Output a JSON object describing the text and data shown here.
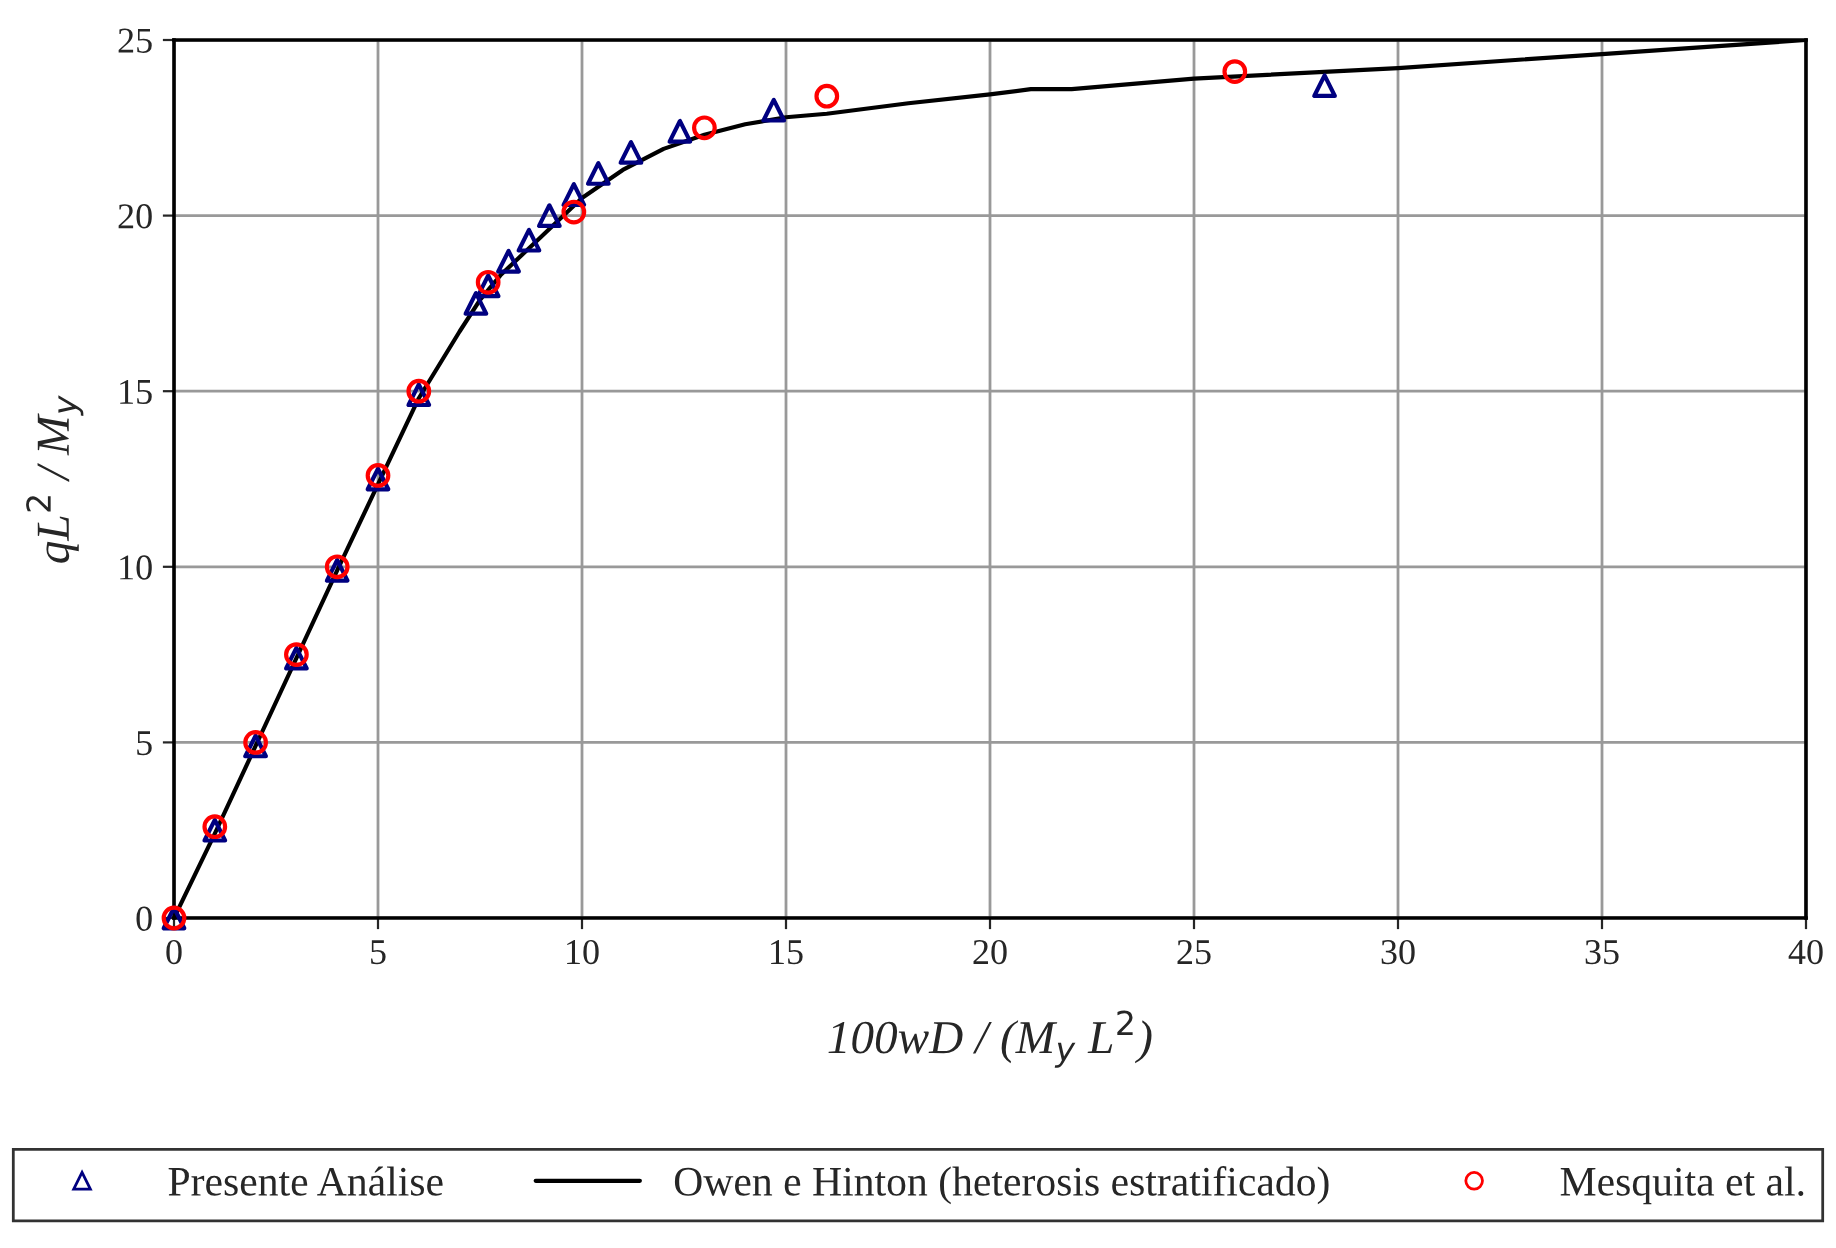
{
  "chart_data": {
    "type": "scatter",
    "xlabel": "100wD / (M$_{y}$ L$^{2}$)",
    "ylabel": "qL$^{2}$ / M$_{y}$",
    "xlim": [
      0,
      40
    ],
    "xticks": [
      0,
      5,
      10,
      15,
      20,
      25,
      30,
      35,
      40
    ],
    "ylim": [
      0,
      25
    ],
    "yticks": [
      0,
      5,
      10,
      15,
      20,
      25
    ],
    "grid": true,
    "legend": "bottom",
    "series": [
      {
        "name": "Presente Análise",
        "marker": "triangle",
        "color": "#000080",
        "x": [
          0,
          1,
          2,
          3,
          4,
          5,
          6,
          7.4,
          7.7,
          8.2,
          8.7,
          9.2,
          9.8,
          10.4,
          11.2,
          12.4,
          14.7,
          28.2
        ],
        "values": [
          0,
          2.5,
          4.9,
          7.4,
          9.9,
          12.5,
          14.9,
          17.5,
          18.0,
          18.7,
          19.3,
          20.0,
          20.6,
          21.2,
          21.8,
          22.4,
          23.0,
          23.7
        ]
      },
      {
        "name": "Owen e Hinton (heterosis estratificado)",
        "type": "line",
        "marker": "none",
        "color": "#000000",
        "x": [
          0,
          1,
          2,
          4,
          6,
          7,
          7.5,
          8,
          9,
          10,
          11,
          12,
          13,
          14,
          15,
          16,
          18,
          20,
          21,
          22,
          25,
          30,
          35,
          40
        ],
        "values": [
          0,
          2.4,
          4.9,
          9.9,
          14.8,
          16.7,
          17.6,
          18.3,
          19.4,
          20.5,
          21.3,
          21.9,
          22.3,
          22.6,
          22.8,
          22.9,
          23.2,
          23.45,
          23.6,
          23.6,
          23.9,
          24.2,
          24.6,
          25.0
        ]
      },
      {
        "name": "Mesquita et al.",
        "marker": "circle",
        "color": "#ff0000",
        "x": [
          0,
          1,
          2,
          3,
          4,
          5,
          6,
          7.7,
          9.8,
          13,
          16,
          26
        ],
        "values": [
          0,
          2.6,
          5.0,
          7.5,
          10.0,
          12.6,
          15.0,
          18.1,
          20.1,
          22.5,
          23.4,
          24.1
        ]
      }
    ]
  }
}
